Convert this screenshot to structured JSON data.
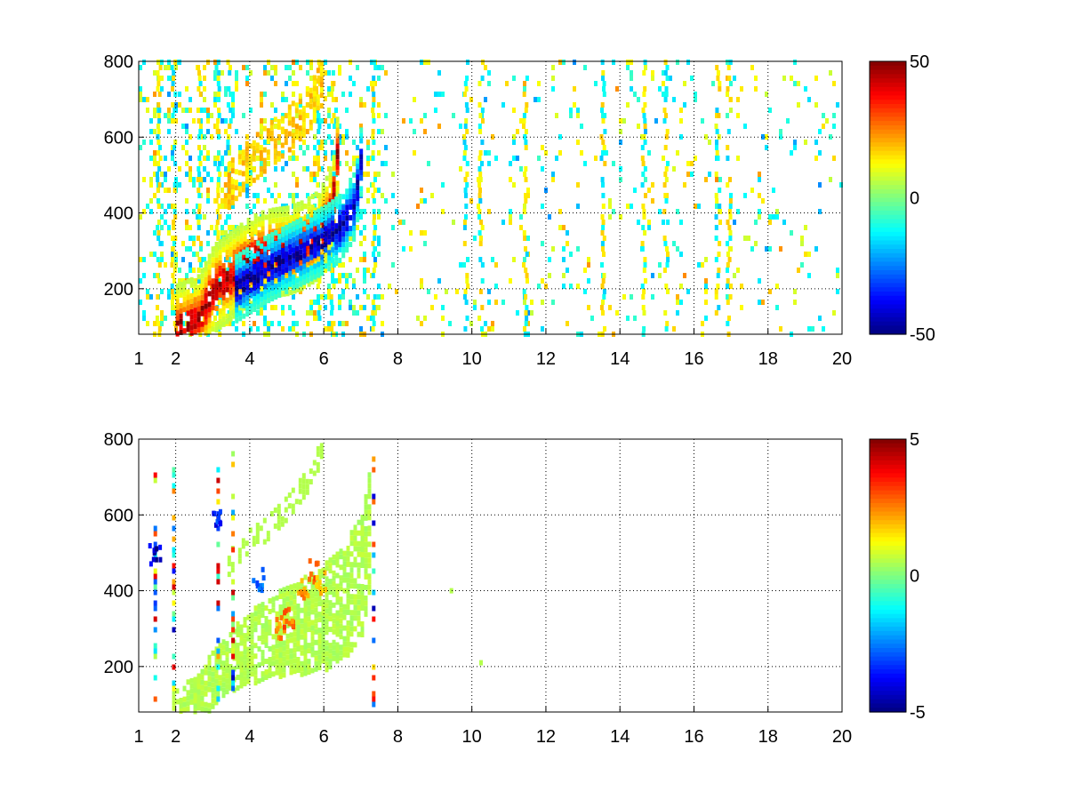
{
  "chart_data": [
    {
      "type": "heatmap",
      "title": "",
      "xlabel": "",
      "ylabel": "",
      "xlim": [
        1,
        20
      ],
      "ylim": [
        80,
        800
      ],
      "x_ticks": [
        1,
        2,
        4,
        6,
        8,
        10,
        12,
        14,
        16,
        18,
        20
      ],
      "y_ticks": [
        200,
        400,
        600,
        800
      ],
      "grid": true,
      "colormap": "jet",
      "colorbar": {
        "min": -50,
        "max": 50,
        "ticks": [
          50,
          0,
          -50
        ]
      },
      "features": {
        "ridge_positive": [
          [
            2.0,
            95
          ],
          [
            2.6,
            120
          ],
          [
            3.0,
            200
          ],
          [
            3.4,
            230
          ],
          [
            3.8,
            260
          ],
          [
            4.2,
            285
          ],
          [
            4.6,
            295
          ],
          [
            5.0,
            300
          ],
          [
            5.4,
            315
          ],
          [
            5.8,
            340
          ],
          [
            6.0,
            370
          ],
          [
            6.2,
            420
          ],
          [
            6.3,
            520
          ],
          [
            6.4,
            640
          ]
        ],
        "ridge_negative": [
          [
            3.6,
            200
          ],
          [
            4.0,
            225
          ],
          [
            4.4,
            250
          ],
          [
            4.8,
            270
          ],
          [
            5.2,
            290
          ],
          [
            5.6,
            310
          ],
          [
            6.0,
            330
          ],
          [
            6.4,
            360
          ],
          [
            6.8,
            420
          ],
          [
            7.0,
            560
          ]
        ],
        "ridge_positive_value": 45,
        "ridge_negative_value": -45,
        "background_noise_x_range": [
          1,
          20
        ],
        "vertical_stripes_x": [
          1.5,
          1.9,
          2.6,
          3.1,
          3.4,
          5.8,
          6.2,
          7.3,
          9.8,
          10.2,
          11.4,
          13.5,
          14.6,
          15.2,
          16.6,
          16.9
        ],
        "upper_arc": [
          [
            3.3,
            460
          ],
          [
            3.8,
            520
          ],
          [
            4.4,
            570
          ],
          [
            5.0,
            620
          ],
          [
            5.6,
            680
          ],
          [
            6.0,
            760
          ]
        ]
      }
    },
    {
      "type": "heatmap",
      "title": "",
      "xlabel": "",
      "ylabel": "",
      "xlim": [
        1,
        20
      ],
      "ylim": [
        80,
        800
      ],
      "x_ticks": [
        1,
        2,
        4,
        6,
        8,
        10,
        12,
        14,
        16,
        18,
        20
      ],
      "y_ticks": [
        200,
        400,
        600,
        800
      ],
      "grid": true,
      "colormap": "jet",
      "colorbar": {
        "min": -5,
        "max": 5,
        "ticks": [
          5,
          0,
          -5
        ]
      },
      "features": {
        "band_center": [
          [
            1.9,
            90
          ],
          [
            2.5,
            110
          ],
          [
            3.0,
            170
          ],
          [
            3.5,
            220
          ],
          [
            4.0,
            250
          ],
          [
            4.5,
            275
          ],
          [
            5.0,
            295
          ],
          [
            5.5,
            310
          ],
          [
            6.0,
            330
          ],
          [
            6.5,
            370
          ],
          [
            7.0,
            440
          ],
          [
            7.2,
            560
          ]
        ],
        "band_value": 0.5,
        "upper_arc": [
          [
            3.3,
            460
          ],
          [
            3.8,
            520
          ],
          [
            4.4,
            560
          ],
          [
            5.0,
            620
          ],
          [
            5.6,
            700
          ],
          [
            5.9,
            770
          ]
        ],
        "hot_spots": [
          [
            4.8,
            300,
            2.5
          ],
          [
            5.0,
            330,
            3
          ],
          [
            5.4,
            400,
            2.5
          ],
          [
            5.7,
            450,
            3
          ],
          [
            5.9,
            420,
            2
          ],
          [
            4.2,
            430,
            -3
          ],
          [
            3.1,
            600,
            -4
          ],
          [
            1.4,
            500,
            -5
          ]
        ],
        "vertical_stripes_x": [
          1.4,
          1.9,
          3.1,
          3.5,
          7.3
        ],
        "isolated_points": [
          [
            9.4,
            400
          ],
          [
            10.2,
            210
          ]
        ]
      }
    }
  ]
}
